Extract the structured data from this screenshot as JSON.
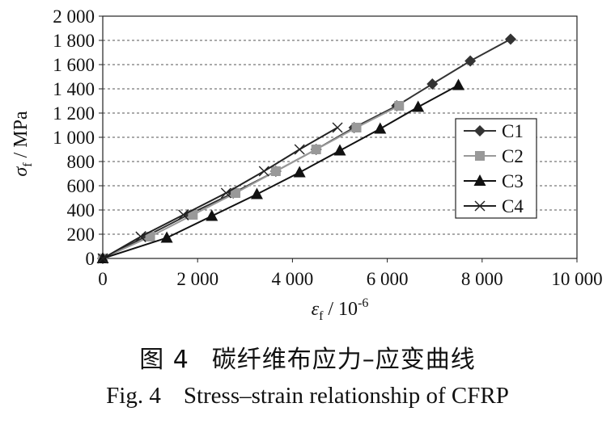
{
  "chart_data": {
    "type": "line",
    "xlabel": "ε_f / 10^-6",
    "ylabel": "σ_f / MPa",
    "xlim": [
      0,
      10000
    ],
    "ylim": [
      0,
      2000
    ],
    "x_ticks": [
      0,
      2000,
      4000,
      6000,
      8000,
      10000
    ],
    "y_ticks": [
      0,
      200,
      400,
      600,
      800,
      1000,
      1200,
      1400,
      1600,
      1800,
      2000
    ],
    "x_tick_labels": [
      "0",
      "2 000",
      "4 000",
      "6 000",
      "8 000",
      "10 000"
    ],
    "y_tick_labels": [
      "0",
      "200",
      "400",
      "600",
      "800",
      "1 000",
      "1 200",
      "1 400",
      "1 600",
      "1 800",
      "2 000"
    ],
    "grid": "horizontal dashed",
    "legend_position": "right",
    "series": [
      {
        "name": "C1",
        "marker": "diamond",
        "color": "#333333",
        "x": [
          0,
          900,
          1800,
          2750,
          3650,
          4500,
          5300,
          6200,
          6950,
          7750,
          8600
        ],
        "y": [
          0,
          180,
          360,
          540,
          720,
          900,
          1080,
          1260,
          1440,
          1630,
          1810
        ]
      },
      {
        "name": "C2",
        "marker": "square",
        "color": "#999999",
        "x": [
          0,
          1000,
          1900,
          2800,
          3650,
          4500,
          5350,
          6250
        ],
        "y": [
          0,
          180,
          360,
          540,
          720,
          900,
          1080,
          1260
        ]
      },
      {
        "name": "C3",
        "marker": "triangle",
        "color": "#111111",
        "x": [
          0,
          1350,
          2300,
          3250,
          4150,
          5000,
          5850,
          6650,
          7500
        ],
        "y": [
          0,
          170,
          350,
          530,
          710,
          890,
          1070,
          1250,
          1430
        ]
      },
      {
        "name": "C4",
        "marker": "x",
        "color": "#222222",
        "x": [
          0,
          800,
          1700,
          2600,
          3400,
          4150,
          4950
        ],
        "y": [
          0,
          180,
          360,
          540,
          720,
          900,
          1080
        ]
      }
    ]
  },
  "caption": {
    "cn_fig": "图 4",
    "cn_title": "碳纤维布应力–应变曲线",
    "en_fig": "Fig. 4",
    "en_title": "Stress–strain relationship of CFRP"
  }
}
